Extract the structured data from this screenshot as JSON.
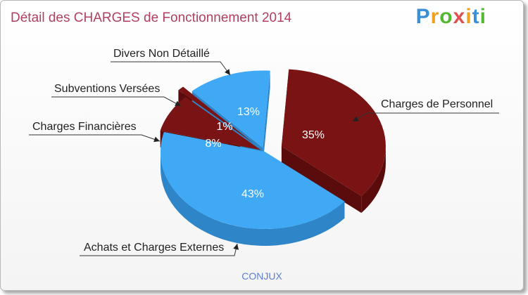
{
  "title": "Détail des CHARGES de Fonctionnement 2014",
  "logo": {
    "text": "Proxiti"
  },
  "commune": "CONJUX",
  "colors": {
    "dark_red": "#7a1414",
    "dark_red_side": "#5a0c0c",
    "blue": "#3fa9f5",
    "blue_side": "#2e86c8"
  },
  "chart_data": {
    "type": "pie",
    "title": "Détail des CHARGES de Fonctionnement 2014",
    "slices": [
      {
        "label": "Charges de Personnel",
        "value": 35,
        "pct_label": "35%",
        "color": "dark_red"
      },
      {
        "label": "Achats et Charges Externes",
        "value": 43,
        "pct_label": "43%",
        "color": "blue"
      },
      {
        "label": "Charges Financières",
        "value": 8,
        "pct_label": "8%",
        "color": "dark_red"
      },
      {
        "label": "Subventions Versées",
        "value": 1,
        "pct_label": "1%",
        "color": "dark_red"
      },
      {
        "label": "Divers Non Détaillé",
        "value": 13,
        "pct_label": "13%",
        "color": "blue"
      }
    ]
  }
}
